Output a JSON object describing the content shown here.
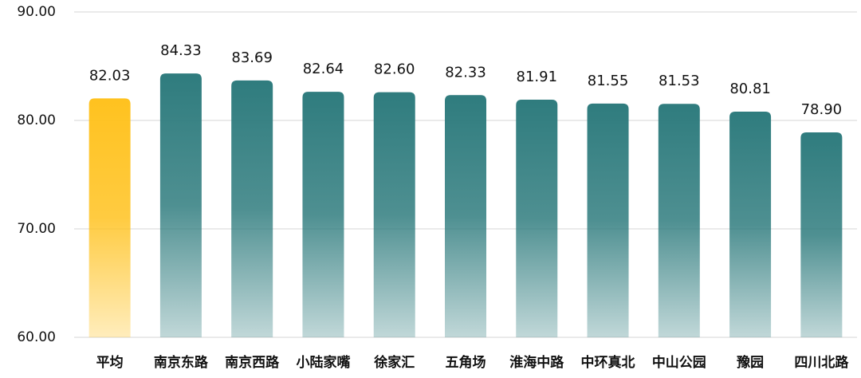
{
  "chart_data": {
    "type": "bar",
    "categories": [
      "平均",
      "南京东路",
      "南京西路",
      "小陆家嘴",
      "徐家汇",
      "五角场",
      "淮海中路",
      "中环真北",
      "中山公园",
      "豫园",
      "四川北路"
    ],
    "values": [
      82.03,
      84.33,
      83.69,
      82.64,
      82.6,
      82.33,
      81.91,
      81.55,
      81.53,
      80.81,
      78.9
    ],
    "value_labels": [
      "82.03",
      "84.33",
      "83.69",
      "82.64",
      "82.60",
      "82.33",
      "81.91",
      "81.55",
      "81.53",
      "80.81",
      "78.90"
    ],
    "colors": [
      "#ffc21f",
      "#2f7c7e",
      "#2f7c7e",
      "#2f7c7e",
      "#2f7c7e",
      "#2f7c7e",
      "#2f7c7e",
      "#2f7c7e",
      "#2f7c7e",
      "#2f7c7e",
      "#2f7c7e"
    ],
    "ylim": [
      60,
      90
    ],
    "yticks": [
      {
        "value": 60,
        "label": "60.00"
      },
      {
        "value": 70,
        "label": "70.00"
      },
      {
        "value": 80,
        "label": "80.00"
      },
      {
        "value": 90,
        "label": "90.00"
      }
    ],
    "grid": true
  }
}
